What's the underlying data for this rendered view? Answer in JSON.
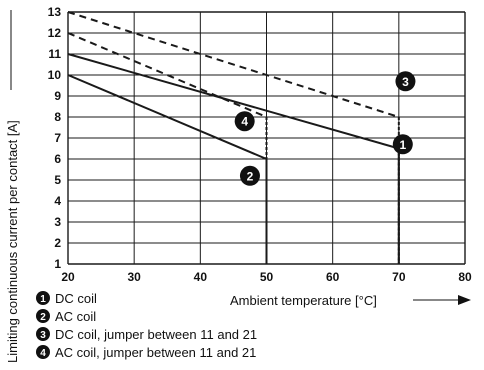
{
  "chart_data": {
    "type": "line",
    "xlabel": "Ambient temperature [°C]",
    "ylabel": "Limiting continuous current per contact [A]",
    "xlim": [
      20,
      80
    ],
    "ylim": [
      1,
      13
    ],
    "x_ticks": [
      "20",
      "30",
      "40",
      "50",
      "60",
      "70",
      "80"
    ],
    "y_ticks": [
      "1",
      "2",
      "3",
      "4",
      "5",
      "6",
      "7",
      "8",
      "9",
      "10",
      "11",
      "12",
      "13"
    ],
    "grid": true,
    "series": [
      {
        "marker": "1",
        "name": "DC coil",
        "style": "solid",
        "x": [
          20,
          70
        ],
        "y": [
          11,
          6.5
        ],
        "drop_to_axis_at": 70
      },
      {
        "marker": "2",
        "name": "AC coil",
        "style": "solid",
        "x": [
          20,
          50
        ],
        "y": [
          10,
          6
        ],
        "drop_to_axis_at": 50
      },
      {
        "marker": "3",
        "name": "DC coil, jumper between 11 and 21",
        "style": "dashed",
        "x": [
          20,
          70
        ],
        "y": [
          13,
          8
        ],
        "drop_to_axis_at": 70
      },
      {
        "marker": "4",
        "name": "AC coil, jumper between 11 and 21",
        "style": "dashed",
        "x": [
          20,
          50
        ],
        "y": [
          12,
          8
        ],
        "drop_to_axis_at": 50
      }
    ],
    "annotations": [
      {
        "marker": "1",
        "x": 70.6,
        "y": 6.7
      },
      {
        "marker": "2",
        "x": 47.5,
        "y": 5.2
      },
      {
        "marker": "3",
        "x": 71.0,
        "y": 9.7
      },
      {
        "marker": "4",
        "x": 46.7,
        "y": 7.8
      }
    ]
  },
  "colors": {
    "line": "#1a1a1a",
    "grid": "#1a1a1a",
    "marker_fill": "#111111",
    "marker_text": "#ffffff"
  }
}
